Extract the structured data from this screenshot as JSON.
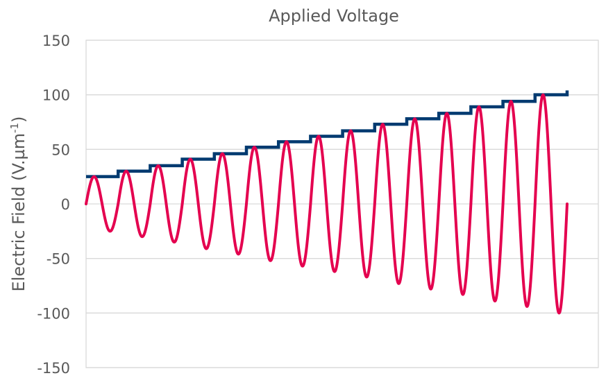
{
  "chart_data": {
    "type": "line",
    "title": "Applied Voltage",
    "ylabel": "Electric Field (V.µm",
    "ylabel_sup": "-1",
    "ylabel_close": ")",
    "xlabel": "",
    "ylim": [
      -150,
      150
    ],
    "yticks": [
      150,
      100,
      50,
      0,
      -50,
      -100,
      -150
    ],
    "ytick_labels": [
      "150",
      "100",
      "50",
      "0",
      "-50",
      "-100",
      "-150"
    ],
    "grid": true,
    "legend": "none",
    "colors": {
      "envelope": "#003a70",
      "signal": "#e4004f",
      "grid": "#d9d9d9",
      "text": "#595959"
    },
    "x_range": [
      0,
      15
    ],
    "series": [
      {
        "style": "step",
        "color": "#003a70",
        "x_start": 0,
        "x_end": 15,
        "levels": [
          25,
          30,
          35,
          41,
          46,
          52,
          57,
          62,
          67,
          73,
          78,
          83,
          89,
          94,
          100
        ],
        "final_value": 104
      },
      {
        "style": "sine",
        "color": "#e4004f",
        "cycles": 15,
        "amplitudes": [
          25,
          30,
          35,
          41,
          46,
          52,
          57,
          62,
          67,
          73,
          78,
          83,
          89,
          94,
          100
        ]
      }
    ]
  }
}
